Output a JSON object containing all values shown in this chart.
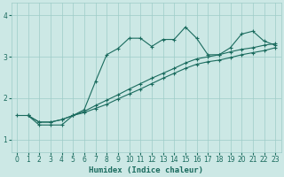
{
  "xlabel": "Humidex (Indice chaleur)",
  "bg_color": "#cce8e5",
  "grid_color": "#9dccc8",
  "line_color": "#1a6b5e",
  "xlim": [
    -0.5,
    23.5
  ],
  "ylim": [
    0.7,
    4.3
  ],
  "xticks": [
    0,
    1,
    2,
    3,
    4,
    5,
    6,
    7,
    8,
    9,
    10,
    11,
    12,
    13,
    14,
    15,
    16,
    17,
    18,
    19,
    20,
    21,
    22,
    23
  ],
  "yticks": [
    1,
    2,
    3,
    4
  ],
  "line1_x": [
    0,
    1,
    2,
    3,
    4,
    5,
    6,
    7,
    8,
    9,
    10,
    11,
    12,
    13,
    14,
    15,
    16,
    17,
    18,
    19,
    20,
    21,
    22,
    23
  ],
  "line1_y": [
    1.58,
    1.58,
    1.35,
    1.35,
    1.35,
    1.58,
    1.72,
    2.4,
    3.05,
    3.2,
    3.45,
    3.45,
    3.25,
    3.42,
    3.42,
    3.72,
    3.45,
    3.05,
    3.05,
    3.22,
    3.55,
    3.62,
    3.38,
    3.28
  ],
  "line2_x": [
    1,
    2,
    3,
    4,
    5,
    6,
    7,
    8,
    9,
    10,
    11,
    12,
    13,
    14,
    15,
    16,
    17,
    18,
    19,
    20,
    21,
    22,
    23
  ],
  "line2_y": [
    1.58,
    1.42,
    1.42,
    1.48,
    1.58,
    1.68,
    1.82,
    1.95,
    2.08,
    2.22,
    2.35,
    2.48,
    2.6,
    2.72,
    2.85,
    2.95,
    3.0,
    3.05,
    3.12,
    3.18,
    3.22,
    3.28,
    3.32
  ],
  "line3_x": [
    1,
    2,
    3,
    4,
    5,
    6,
    7,
    8,
    9,
    10,
    11,
    12,
    13,
    14,
    15,
    16,
    17,
    18,
    19,
    20,
    21,
    22,
    23
  ],
  "line3_y": [
    1.58,
    1.42,
    1.42,
    1.48,
    1.58,
    1.65,
    1.75,
    1.85,
    1.98,
    2.1,
    2.22,
    2.35,
    2.48,
    2.6,
    2.72,
    2.82,
    2.88,
    2.92,
    2.98,
    3.05,
    3.1,
    3.15,
    3.22
  ],
  "markersize": 3,
  "linewidth": 0.8
}
